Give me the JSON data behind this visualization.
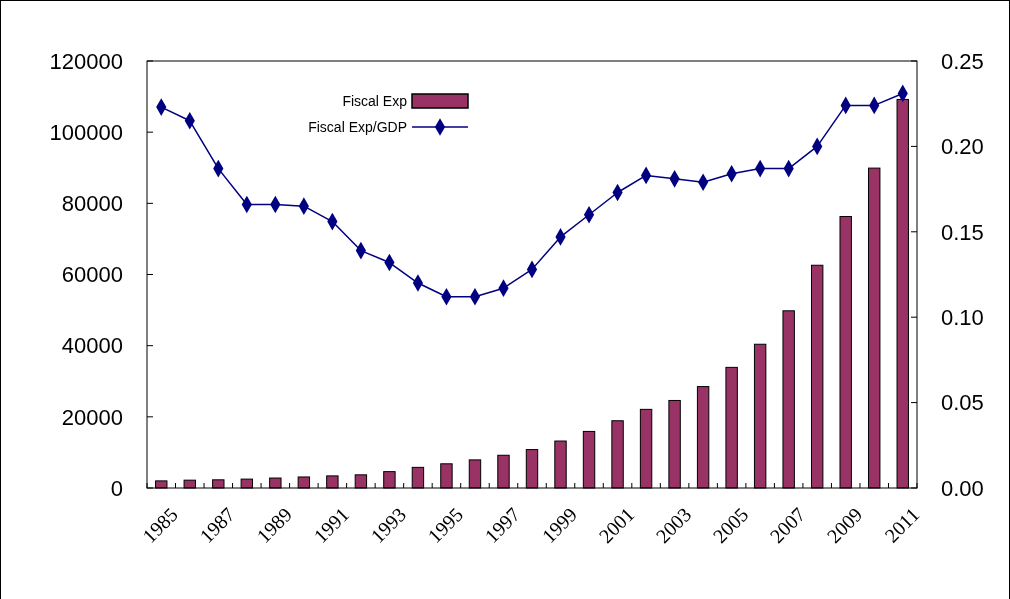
{
  "chart_data": {
    "type": "bar",
    "categories": [
      "1985",
      null,
      "1987",
      null,
      "1989",
      null,
      "1991",
      null,
      "1993",
      null,
      "1995",
      null,
      "1997",
      null,
      "1999",
      null,
      "2001",
      null,
      "2003",
      null,
      "2005",
      null,
      "2007",
      null,
      "2009",
      null,
      "2011"
    ],
    "series": [
      {
        "name": "Fiscal Exp",
        "color": "#993366",
        "values": [
          2000,
          2200,
          2300,
          2500,
          2800,
          3100,
          3400,
          3700,
          4600,
          5800,
          6800,
          7900,
          9200,
          10800,
          13200,
          15900,
          18900,
          22100,
          24600,
          28500,
          33900,
          40400,
          49800,
          62600,
          76300,
          89900,
          109200
        ]
      },
      {
        "name": "Fiscal Exp/GDP",
        "type": "line",
        "axis": "y2",
        "color": "#000080",
        "values": [
          0.223,
          0.215,
          0.187,
          0.166,
          0.166,
          0.165,
          0.156,
          0.139,
          0.132,
          0.12,
          0.112,
          0.112,
          0.117,
          0.128,
          0.147,
          0.16,
          0.173,
          0.183,
          0.181,
          0.179,
          0.184,
          0.187,
          0.187,
          0.2,
          0.224,
          0.224,
          0.231
        ]
      }
    ],
    "ylim": [
      0,
      120000
    ],
    "yticks": [
      0,
      20000,
      40000,
      60000,
      80000,
      100000,
      120000
    ],
    "y2lim": [
      0,
      0.25
    ],
    "y2ticks": [
      {
        "value": 0,
        "label": "0.00"
      },
      {
        "value": 0.05,
        "label": "0.05"
      },
      {
        "value": 0.1,
        "label": "0.10"
      },
      {
        "value": 0.15,
        "label": "0.15"
      },
      {
        "value": 0.2,
        "label": "0.20"
      },
      {
        "value": 0.25,
        "label": "0.25"
      }
    ],
    "grid": false,
    "legend": "top",
    "marker": "diamond",
    "line_style": "solid"
  }
}
